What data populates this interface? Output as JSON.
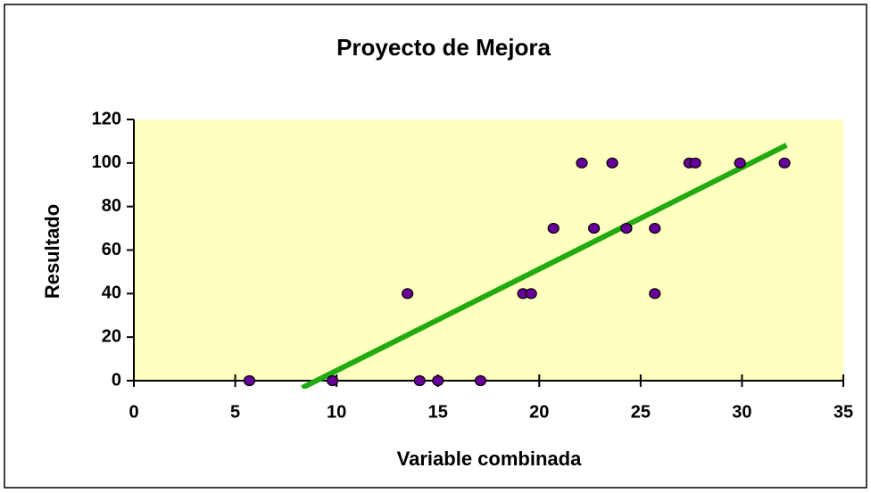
{
  "chart_data": {
    "type": "scatter",
    "title": "Proyecto de Mejora",
    "xlabel": "Variable combinada",
    "ylabel": "Resultado",
    "xlim": [
      0,
      35
    ],
    "xticks": [
      0,
      5,
      10,
      15,
      20,
      25,
      30,
      35
    ],
    "ylim": [
      0,
      120
    ],
    "yticks": [
      0,
      20,
      40,
      60,
      80,
      100,
      120
    ],
    "background": "#ffffc0",
    "series": [
      {
        "color": "#660099",
        "x": [
          5.7,
          9.8,
          13.5,
          14.1,
          15.0,
          17.1,
          19.2,
          19.6,
          20.7,
          22.1,
          22.7,
          23.6,
          24.3,
          25.7,
          25.7,
          27.4,
          27.7,
          29.9,
          32.1
        ],
        "values": [
          0,
          0,
          40,
          0,
          0,
          0,
          40,
          40,
          70,
          100,
          70,
          100,
          70,
          70,
          40,
          100,
          100,
          100,
          100
        ]
      }
    ],
    "trendline": {
      "color": "#22aa11",
      "x": [
        8.3,
        32.2
      ],
      "values": [
        -3.3,
        108.2
      ]
    }
  }
}
